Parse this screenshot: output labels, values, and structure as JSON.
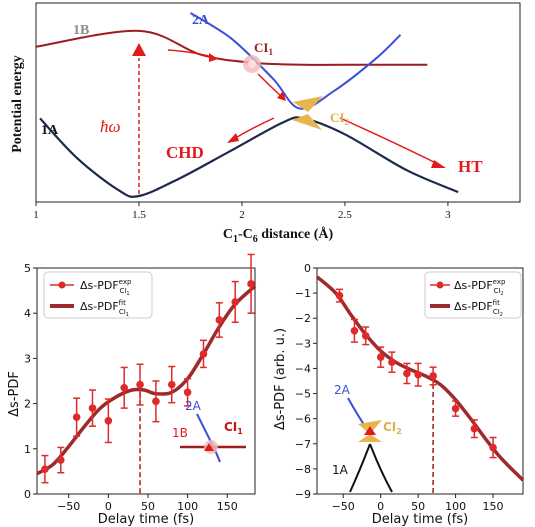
{
  "colors": {
    "dark_red": "#9e1b1e",
    "red": "#e31a1c",
    "blue": "#3a4fd8",
    "navy": "#1b2a4a",
    "gold": "#e0b050",
    "grey": "#8c8c8c",
    "fit": "#9e2a2b",
    "exp": "#e02a2a"
  },
  "chart_data": [
    {
      "type": "line",
      "name": "potential-energy-diagram",
      "xlabel_main": "C",
      "xlabel_sub1": "1",
      "xlabel_mid": "-C",
      "xlabel_sub6": "6",
      "xlabel_end": " distance (Å)",
      "ylabel": "Potential energy",
      "xlim": [
        1.0,
        3.35
      ],
      "xticks": [
        "1",
        "1.5",
        "2",
        "2.5",
        "3"
      ],
      "tick_values": [
        1.0,
        1.5,
        2.0,
        2.5,
        3.0
      ],
      "labels": {
        "state_1B": "1B",
        "state_2A": "2A",
        "state_1A": "1A",
        "ci1_main": "CI",
        "ci1_sub": "1",
        "ci2_main": "CI",
        "ci2_sub": "2",
        "hbar_omega": "ħω",
        "chd": "CHD",
        "ht": "HT"
      },
      "curves": {
        "1B": {
          "x": [
            1.0,
            1.5,
            1.8,
            2.05,
            2.3,
            2.6,
            2.9
          ],
          "y": [
            0.78,
            0.86,
            0.74,
            0.7,
            0.69,
            0.69,
            0.69
          ]
        },
        "2A": {
          "x": [
            1.75,
            1.95,
            2.15,
            2.28,
            2.45,
            2.65,
            2.77
          ],
          "y": [
            0.95,
            0.82,
            0.62,
            0.47,
            0.56,
            0.72,
            0.84
          ]
        },
        "1A": {
          "x": [
            1.02,
            1.2,
            1.4,
            1.5,
            1.7,
            1.95,
            2.2,
            2.3,
            2.5,
            2.8,
            3.05
          ],
          "y": [
            0.42,
            0.22,
            0.06,
            0.03,
            0.12,
            0.26,
            0.4,
            0.42,
            0.34,
            0.16,
            0.05
          ]
        }
      }
    },
    {
      "type": "line",
      "name": "ci1-panel",
      "xlabel": "Delay time (fs)",
      "ylabel": "Δs-PDF",
      "xlim": [
        -90,
        185
      ],
      "ylim": [
        0,
        5
      ],
      "xticks": [
        "−50",
        "0",
        "50",
        "100",
        "150"
      ],
      "xtick_values": [
        -50,
        0,
        50,
        100,
        150
      ],
      "yticks": [
        "0",
        "1",
        "2",
        "3",
        "4",
        "5"
      ],
      "ytick_values": [
        0,
        1,
        2,
        3,
        4,
        5
      ],
      "legend": {
        "exp_main": "Δs-PDF",
        "exp_sup": "exp",
        "exp_sub": "CI",
        "exp_subsub": "1",
        "fit_main": "Δs-PDF",
        "fit_sup": "fit",
        "fit_sub": "CI",
        "fit_subsub": "1"
      },
      "exp": {
        "x": [
          -80,
          -60,
          -40,
          -20,
          0,
          20,
          40,
          60,
          80,
          100,
          120,
          140,
          160,
          180
        ],
        "y": [
          0.55,
          0.75,
          1.7,
          1.9,
          1.62,
          2.35,
          2.42,
          2.05,
          2.42,
          2.25,
          3.1,
          3.85,
          4.25,
          4.65
        ],
        "err": [
          0.3,
          0.28,
          0.42,
          0.4,
          0.48,
          0.45,
          0.45,
          0.45,
          0.4,
          0.3,
          0.3,
          0.38,
          0.45,
          0.65
        ]
      },
      "fit": {
        "x": [
          -90,
          -70,
          -50,
          -30,
          -10,
          10,
          30,
          45,
          60,
          80,
          100,
          120,
          140,
          160,
          185
        ],
        "y": [
          0.45,
          0.65,
          1.05,
          1.5,
          1.9,
          2.15,
          2.3,
          2.3,
          2.22,
          2.25,
          2.55,
          3.1,
          3.7,
          4.2,
          4.6
        ]
      },
      "vline_x": 40,
      "vline_ymax": 2.25,
      "inset": {
        "label_2A": "2A",
        "label_1B": "1B",
        "label_CI": "CI",
        "label_CI_sub": "1"
      }
    },
    {
      "type": "line",
      "name": "ci2-panel",
      "xlabel": "Delay time (fs)",
      "ylabel": "Δs-PDF (arb. u.)",
      "xlim": [
        -85,
        190
      ],
      "ylim": [
        -9,
        0
      ],
      "xticks": [
        "−50",
        "0",
        "50",
        "100",
        "150"
      ],
      "xtick_values": [
        -50,
        0,
        50,
        100,
        150
      ],
      "yticks": [
        "−9",
        "−8",
        "−7",
        "−6",
        "−5",
        "−4",
        "−3",
        "−2",
        "−1",
        "0"
      ],
      "ytick_values": [
        -9,
        -8,
        -7,
        -6,
        -5,
        -4,
        -3,
        -2,
        -1,
        0
      ],
      "legend": {
        "exp_main": "Δs-PDF",
        "exp_sup": "exp",
        "exp_sub": "CI",
        "exp_subsub": "2",
        "fit_main": "Δs-PDF",
        "fit_sup": "fit",
        "fit_sub": "CI",
        "fit_subsub": "2"
      },
      "exp": {
        "x": [
          -55,
          -35,
          -20,
          0,
          15,
          35,
          50,
          70,
          100,
          125,
          150
        ],
        "y": [
          -1.1,
          -2.5,
          -2.7,
          -3.55,
          -3.75,
          -4.2,
          -4.25,
          -4.3,
          -5.6,
          -6.4,
          -7.15
        ],
        "err": [
          0.25,
          0.45,
          0.35,
          0.4,
          0.4,
          0.4,
          0.45,
          0.35,
          0.3,
          0.35,
          0.4
        ]
      },
      "fit": {
        "x": [
          -85,
          -60,
          -40,
          -20,
          0,
          20,
          40,
          60,
          80,
          100,
          120,
          140,
          160,
          190
        ],
        "y": [
          -0.35,
          -1.0,
          -1.85,
          -2.65,
          -3.3,
          -3.75,
          -4.05,
          -4.3,
          -4.65,
          -5.25,
          -6.0,
          -6.8,
          -7.55,
          -8.45
        ]
      },
      "vline_x": 70,
      "vline_ymax": -4.3,
      "inset": {
        "label_2A": "2A",
        "label_1A": "1A",
        "label_CI": "CI",
        "label_CI_sub": "2"
      }
    }
  ]
}
